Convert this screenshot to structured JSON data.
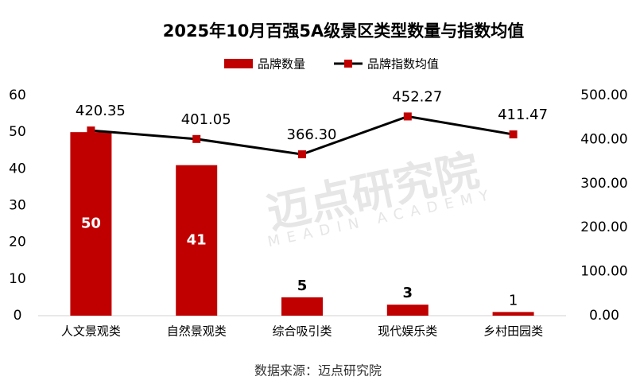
{
  "chart_data": {
    "type": "combo",
    "title": "2025年10月百强5A级景区类型数量与指数均值",
    "categories": [
      "人文景观类",
      "自然景观类",
      "综合吸引类",
      "现代娱乐类",
      "乡村田园类"
    ],
    "series": [
      {
        "name": "品牌数量",
        "type": "bar",
        "color": "#c00000",
        "values": [
          50,
          41,
          5,
          3,
          1
        ]
      },
      {
        "name": "品牌指数均值",
        "type": "line",
        "axis": "y2",
        "color": "#000000",
        "marker_color": "#c00000",
        "values": [
          420.35,
          401.05,
          366.3,
          452.27,
          411.47
        ],
        "value_labels": [
          "420.35",
          "401.05",
          "366.30",
          "452.27",
          "411.47"
        ]
      }
    ],
    "ylim": [
      0,
      60
    ],
    "yticks": [
      0,
      10,
      20,
      30,
      40,
      50,
      60
    ],
    "y2lim": [
      0,
      500
    ],
    "y2ticks": [
      {
        "value": 0,
        "label": "0.00"
      },
      {
        "value": 100,
        "label": "100.00"
      },
      {
        "value": 200,
        "label": "200.00"
      },
      {
        "value": 300,
        "label": "300.00"
      },
      {
        "value": 400,
        "label": "400.00"
      },
      {
        "value": 500,
        "label": "500.00"
      }
    ],
    "legend": "top",
    "source": "数据来源：迈点研究院",
    "watermark": "迈点研究院",
    "watermark_sub": "MEADIN ACADEMY"
  }
}
